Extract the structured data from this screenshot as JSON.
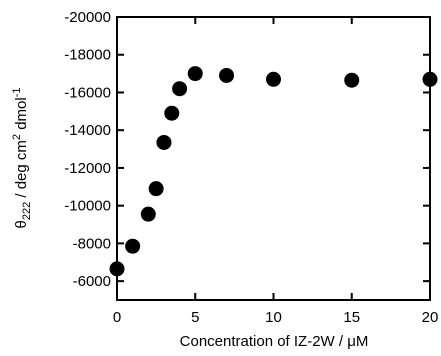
{
  "chart_data": {
    "type": "scatter",
    "title": "",
    "xlabel": "Concentration of IZ-2W / μM",
    "ylabel": {
      "base": "θ",
      "base_sub": "222",
      "rest1": " / deg cm",
      "sup1": "2",
      "rest2": " dmol",
      "sup2": "-1"
    },
    "xlim": [
      0,
      20
    ],
    "ylim": [
      -5000,
      -20000
    ],
    "y_inverted": true,
    "grid": false,
    "x_ticks": [
      0,
      5,
      10,
      15,
      20
    ],
    "x_tick_labels": [
      "0",
      "5",
      "10",
      "15",
      "20"
    ],
    "y_ticks": [
      -6000,
      -8000,
      -10000,
      -12000,
      -14000,
      -16000,
      -18000,
      -20000
    ],
    "y_tick_labels": [
      "-6000",
      "-8000",
      "-10000",
      "-12000",
      "-14000",
      "-16000",
      "-18000",
      "-20000"
    ],
    "series": [
      {
        "marker": "filled-circle",
        "color": "#000000",
        "x": [
          0,
          1,
          2,
          2.5,
          3,
          3.5,
          4,
          5,
          7,
          10,
          15,
          20
        ],
        "y": [
          -6650,
          -7850,
          -9550,
          -10900,
          -13350,
          -14900,
          -16200,
          -17000,
          -16900,
          -16700,
          -16650,
          -16700
        ]
      }
    ]
  }
}
